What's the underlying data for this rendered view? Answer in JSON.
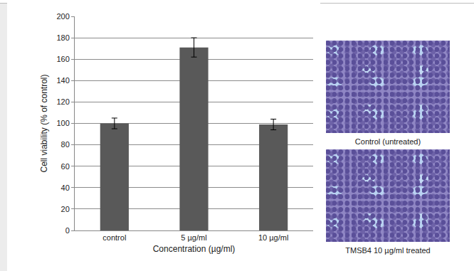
{
  "chart_data": {
    "type": "bar",
    "categories": [
      "control",
      "5 µg/ml",
      "10 µg/ml"
    ],
    "values": [
      100,
      171,
      99
    ],
    "errors": [
      5,
      9,
      5
    ],
    "color": "#595959",
    "x_label": "Concentration (µg/ml)",
    "y_label": "Cell viability (% of control)",
    "ylim": [
      0,
      200
    ],
    "yticks": [
      0,
      20,
      40,
      60,
      80,
      100,
      120,
      140,
      160,
      180,
      200
    ],
    "grid": true
  },
  "images": [
    {
      "caption": "Control (untreated)"
    },
    {
      "caption": "TMSB4 10 µg/ml treated"
    }
  ]
}
